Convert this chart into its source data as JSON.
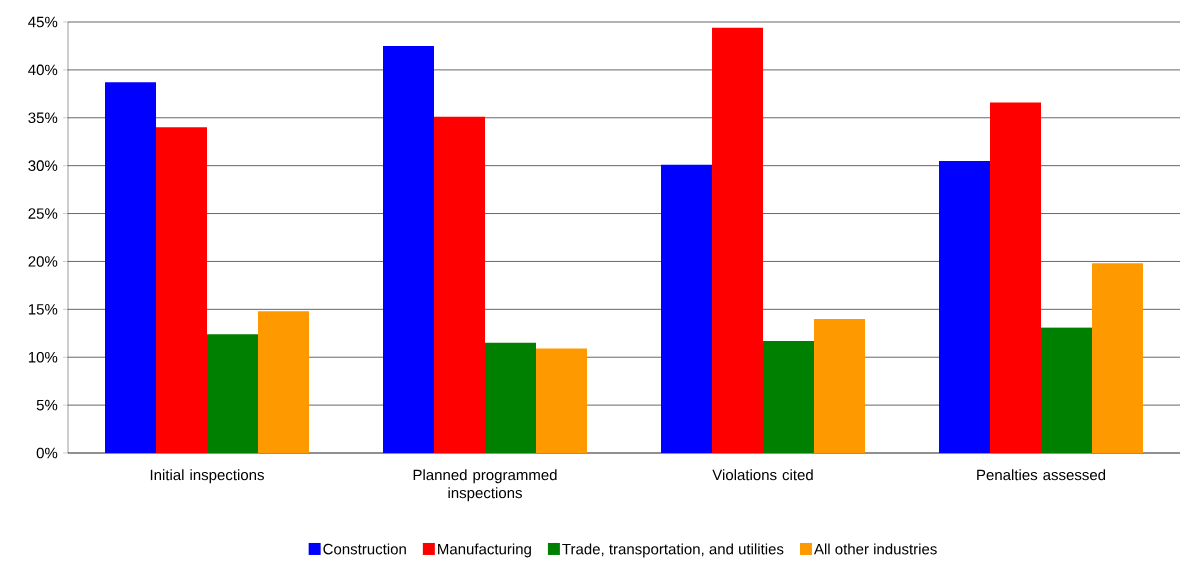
{
  "chart_data": {
    "type": "bar",
    "categories": [
      "Initial inspections",
      "Planned programmed inspections",
      "Violations cited",
      "Penalties assessed"
    ],
    "series": [
      {
        "name": "Construction",
        "color": "#0000ff",
        "values": [
          38.7,
          42.5,
          30.1,
          30.5
        ]
      },
      {
        "name": "Manufacturing",
        "color": "#ff0000",
        "values": [
          34.0,
          35.1,
          44.4,
          36.6
        ]
      },
      {
        "name": "Trade, transportation, and utilities",
        "color": "#008000",
        "values": [
          12.4,
          11.5,
          11.7,
          13.1
        ]
      },
      {
        "name": "All other industries",
        "color": "#ff9900",
        "values": [
          14.8,
          10.9,
          14.0,
          19.8
        ]
      }
    ],
    "ylim": [
      0,
      45
    ],
    "yticks": [
      {
        "value": 0,
        "label": "0%"
      },
      {
        "value": 5,
        "label": "5%"
      },
      {
        "value": 10,
        "label": "10%"
      },
      {
        "value": 15,
        "label": "15%"
      },
      {
        "value": 20,
        "label": "20%"
      },
      {
        "value": 25,
        "label": "25%"
      },
      {
        "value": 30,
        "label": "30%"
      },
      {
        "value": 35,
        "label": "35%"
      },
      {
        "value": 40,
        "label": "40%"
      },
      {
        "value": 45,
        "label": "45%"
      }
    ],
    "grid": "y",
    "legend": "bottom"
  }
}
